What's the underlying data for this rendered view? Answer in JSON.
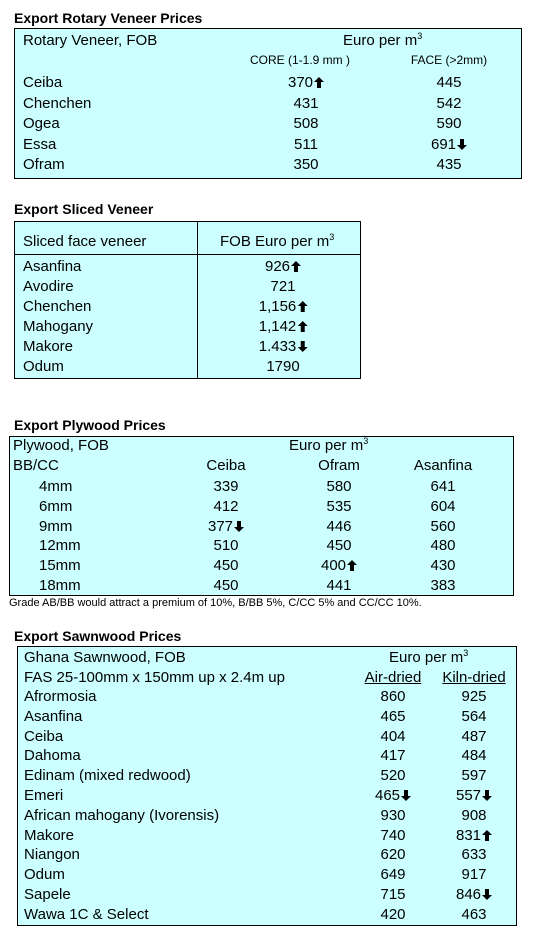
{
  "rotary": {
    "title": "Export Rotary Veneer Prices",
    "header_left": "Rotary Veneer,  FOB",
    "unit": "Euro  per m",
    "unit_sup": "3",
    "col1": "CORE (1-1.9 mm )",
    "col2": "FACE (>2mm)",
    "rows": [
      {
        "name": "Ceiba",
        "core": "370",
        "core_trend": "up",
        "face": "445",
        "face_trend": ""
      },
      {
        "name": "Chenchen",
        "core": "431",
        "core_trend": "",
        "face": "542",
        "face_trend": ""
      },
      {
        "name": "Ogea",
        "core": "508",
        "core_trend": "",
        "face": "590",
        "face_trend": ""
      },
      {
        "name": "Essa",
        "core": "511",
        "core_trend": "",
        "face": "691",
        "face_trend": "down"
      },
      {
        "name": "Ofram",
        "core": "350",
        "core_trend": "",
        "face": "435",
        "face_trend": ""
      }
    ]
  },
  "sliced": {
    "title": "Export Sliced Veneer",
    "header_left": "Sliced face veneer",
    "header_right": "FOB Euro per m",
    "header_sup": "3",
    "rows": [
      {
        "name": "Asanfina",
        "value": "926",
        "trend": "up"
      },
      {
        "name": "Avodire",
        "value": "721",
        "trend": ""
      },
      {
        "name": "Chenchen",
        "value": "1,156",
        "trend": "up"
      },
      {
        "name": "Mahogany",
        "value": "1,142",
        "trend": "up"
      },
      {
        "name": "Makore",
        "value": "1.433",
        "trend": "down"
      },
      {
        "name": "Odum",
        "value": "1790",
        "trend": ""
      }
    ]
  },
  "plywood": {
    "title": "Export Plywood Prices",
    "header_left": "Plywood, FOB",
    "unit": "Euro per m",
    "unit_sup": "3",
    "grade_label": "BB/CC",
    "cols": [
      "Ceiba",
      "Ofram",
      "Asanfina"
    ],
    "rows": [
      {
        "size": "4mm",
        "v": [
          "339",
          "580",
          "641"
        ],
        "t": [
          "",
          "",
          ""
        ]
      },
      {
        "size": "6mm",
        "v": [
          "412",
          "535",
          "604"
        ],
        "t": [
          "",
          "",
          ""
        ]
      },
      {
        "size": "9mm",
        "v": [
          "377",
          "446",
          "560"
        ],
        "t": [
          "down",
          "",
          ""
        ]
      },
      {
        "size": "12mm",
        "v": [
          "510",
          "450",
          "480"
        ],
        "t": [
          "",
          "",
          ""
        ]
      },
      {
        "size": "15mm",
        "v": [
          "450",
          "400",
          "430"
        ],
        "t": [
          "",
          "up",
          ""
        ]
      },
      {
        "size": "18mm",
        "v": [
          "450",
          "441",
          "383"
        ],
        "t": [
          "",
          "",
          ""
        ]
      }
    ],
    "note": "Grade AB/BB would attract a premium of 10%, B/BB 5%, C/CC 5% and CC/CC 10%."
  },
  "sawn": {
    "title": "Export Sawnwood Prices",
    "header_left": "Ghana Sawnwood, FOB",
    "unit": "Euro per m",
    "unit_sup": "3",
    "spec": "FAS 25-100mm x 150mm up x 2.4m up",
    "col1": "Air-dried",
    "col2": "Kiln-dried",
    "rows": [
      {
        "name": "Afrormosia",
        "air": "860",
        "at": "",
        "kiln": "925",
        "kt": ""
      },
      {
        "name": "Asanfina",
        "air": "465",
        "at": "",
        "kiln": "564",
        "kt": ""
      },
      {
        "name": "Ceiba",
        "air": "404",
        "at": "",
        "kiln": "487",
        "kt": ""
      },
      {
        "name": "Dahoma",
        "air": "417",
        "at": "",
        "kiln": "484",
        "kt": ""
      },
      {
        "name": "Edinam (mixed redwood)",
        "air": "520",
        "at": "",
        "kiln": "597",
        "kt": ""
      },
      {
        "name": "Emeri",
        "air": "465",
        "at": "down",
        "kiln": "557",
        "kt": "down"
      },
      {
        "name": "African mahogany (Ivorensis)",
        "air": "930",
        "at": "",
        "kiln": "908",
        "kt": ""
      },
      {
        "name": "Makore",
        "air": "740",
        "at": "",
        "kiln": "831",
        "kt": "up"
      },
      {
        "name": "Niangon",
        "air": "620",
        "at": "",
        "kiln": "633",
        "kt": ""
      },
      {
        "name": "Odum",
        "air": "649",
        "at": "",
        "kiln": "917",
        "kt": ""
      },
      {
        "name": "Sapele",
        "air": "715",
        "at": "",
        "kiln": "846",
        "kt": "down"
      },
      {
        "name": "Wawa 1C & Select",
        "air": "420",
        "at": "",
        "kiln": "463",
        "kt": ""
      }
    ]
  }
}
